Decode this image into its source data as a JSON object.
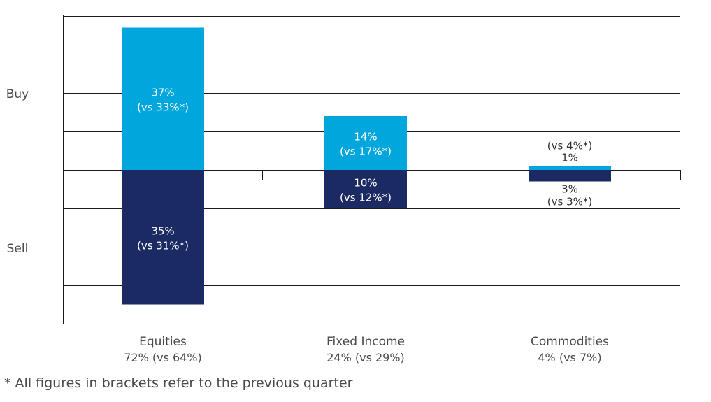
{
  "chart_data": {
    "type": "bar",
    "subtype": "diverging-stacked",
    "y_side_labels": {
      "top": "Buy",
      "bottom": "Sell"
    },
    "ylim": [
      -40,
      40
    ],
    "grid": true,
    "categories": [
      {
        "name": "Equities",
        "total_label": "72% (vs 64%)",
        "total": 72,
        "previous_total": 64
      },
      {
        "name": "Fixed Income",
        "total_label": "24% (vs 29%)",
        "total": 24,
        "previous_total": 29
      },
      {
        "name": "Commodities",
        "total_label": "4% (vs 7%)",
        "total": 4,
        "previous_total": 7
      }
    ],
    "series": [
      {
        "name": "Buy",
        "direction": "up",
        "color": "#00a6dc",
        "values": [
          37,
          14,
          1
        ],
        "value_labels": [
          "37%",
          "14%",
          "1%"
        ],
        "previous_labels": [
          "(vs 33%*)",
          "(vs 17%*)",
          "(vs 4%*)"
        ],
        "label_position": [
          "inside",
          "inside",
          "outside"
        ]
      },
      {
        "name": "Sell",
        "direction": "down",
        "color": "#1b2a63",
        "values": [
          35,
          10,
          3
        ],
        "value_labels": [
          "35%",
          "10%",
          "3%"
        ],
        "previous_labels": [
          "(vs 31%*)",
          "(vs 12%*)",
          "(vs 3%*)"
        ],
        "label_position": [
          "inside",
          "inside",
          "outside"
        ]
      }
    ]
  },
  "footnote": "*  All figures in brackets refer to the previous quarter",
  "colors": {
    "buy": "#00a6dc",
    "sell": "#1b2a63",
    "grid": "#1a1a1a",
    "text": "#4a4a4a",
    "inside_label": "#ffffff"
  }
}
